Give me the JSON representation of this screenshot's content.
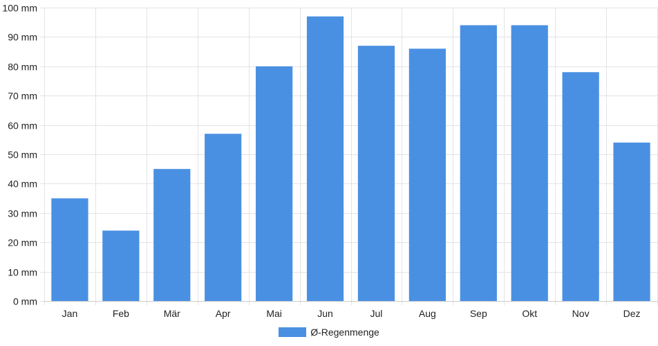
{
  "chart_data": {
    "type": "bar",
    "categories": [
      "Jan",
      "Feb",
      "Mär",
      "Apr",
      "Mai",
      "Jun",
      "Jul",
      "Aug",
      "Sep",
      "Okt",
      "Nov",
      "Dez"
    ],
    "series": [
      {
        "name": "Ø-Regenmenge",
        "values": [
          35,
          24,
          45,
          57,
          80,
          97,
          87,
          86,
          94,
          94,
          78,
          54
        ]
      }
    ],
    "y_ticks": [
      0,
      10,
      20,
      30,
      40,
      50,
      60,
      70,
      80,
      90,
      100
    ],
    "y_unit": "mm",
    "ylim": [
      0,
      100
    ],
    "grid": true,
    "legend_position": "bottom",
    "colors": {
      "bar": "#4a90e2",
      "grid": "#e3e3e3",
      "axis": "#cccccc",
      "text": "#222222"
    }
  }
}
